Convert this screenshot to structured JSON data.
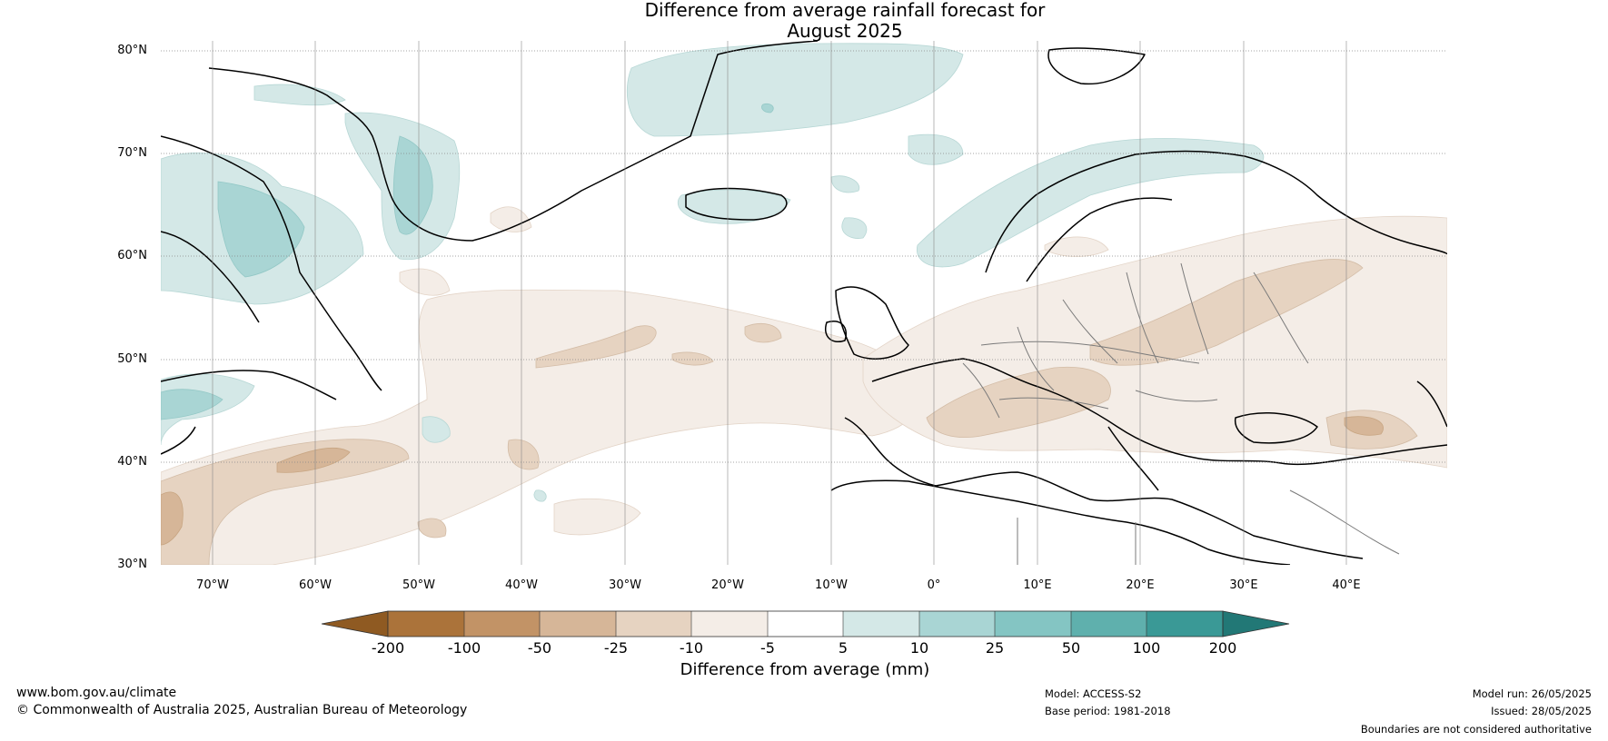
{
  "title_line1": "Difference from average rainfall forecast for",
  "title_line2": "August 2025",
  "latitude_labels": [
    "80°N",
    "70°N",
    "60°N",
    "50°N",
    "40°N",
    "30°N"
  ],
  "longitude_labels": [
    "70°W",
    "60°W",
    "50°W",
    "40°W",
    "30°W",
    "20°W",
    "10°W",
    "0°",
    "10°E",
    "20°E",
    "30°E",
    "40°E"
  ],
  "colorbar": {
    "title": "Difference from average (mm)",
    "tick_labels": [
      "-200",
      "-100",
      "-50",
      "-25",
      "-10",
      "-5",
      "5",
      "10",
      "25",
      "50",
      "100",
      "200"
    ],
    "colors": [
      "#8f5a22",
      "#ab733a",
      "#c29366",
      "#d6b698",
      "#e6d3c1",
      "#f4ede7",
      "#ffffff",
      "#d4e8e7",
      "#a9d5d4",
      "#84c5c3",
      "#5fb0ad",
      "#3a9996",
      "#227876"
    ]
  },
  "anomaly_colors": {
    "dry1": "#f4ede7",
    "dry2": "#e6d3c1",
    "dry3": "#d6b698",
    "wet1": "#d4e8e7",
    "wet2": "#a9d5d4"
  },
  "footer": {
    "website": "www.bom.gov.au/climate",
    "copyright": "© Commonwealth of Australia 2025, Australian Bureau of Meteorology",
    "model": "Model: ACCESS-S2",
    "base_period": "Base period: 1981-2018",
    "model_run": "Model run: 26/05/2025",
    "issued": "Issued: 28/05/2025",
    "disclaimer": "Boundaries are not considered authoritative"
  }
}
